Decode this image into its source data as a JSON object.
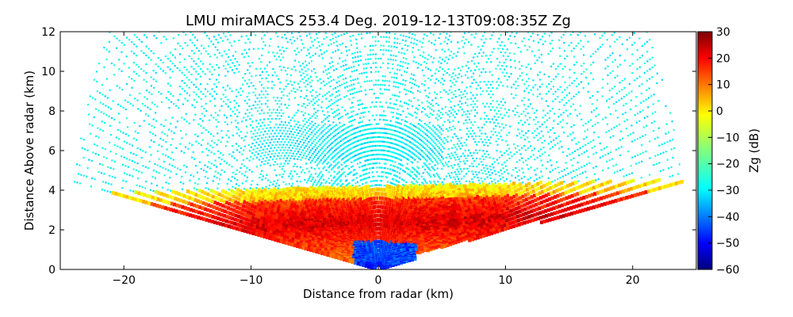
{
  "chart_data": {
    "type": "heatmap",
    "title": "LMU miraMACS 253.4 Deg. 2019-12-13T09:08:35Z  Zg",
    "xlabel": "Distance from radar (km)",
    "ylabel": "Distance Above radar  (km)",
    "xlim": [
      -25,
      25
    ],
    "ylim": [
      0,
      12
    ],
    "x_ticks": [
      -20,
      -10,
      0,
      10,
      20
    ],
    "x_tick_labels": [
      "−20",
      "−10",
      "0",
      "10",
      "20"
    ],
    "y_ticks": [
      0,
      2,
      4,
      6,
      8,
      10,
      12
    ],
    "y_tick_labels": [
      "0",
      "2",
      "4",
      "6",
      "8",
      "10",
      "12"
    ],
    "colorbar": {
      "label": "Zg (dB)",
      "range": [
        -60,
        30
      ],
      "ticks": [
        30,
        20,
        10,
        0,
        -10,
        -20,
        -30,
        -40,
        -50,
        -60
      ],
      "tick_labels": [
        "30",
        "20",
        "10",
        "0",
        "−10",
        "−20",
        "−30",
        "−40",
        "−50",
        "−60"
      ],
      "colormap": "jet"
    },
    "regions": [
      {
        "name": "noise-field",
        "description_value_db": -28,
        "x_range": [
          -23,
          23
        ],
        "y_range": [
          4,
          12
        ]
      },
      {
        "name": "mid-level-cloud",
        "value_db": -30,
        "x_range": [
          -10,
          5
        ],
        "y_range": [
          5.5,
          7.3
        ]
      },
      {
        "name": "precip-layer",
        "value_db": 15,
        "x_range": [
          -24,
          24
        ],
        "y_range": [
          0.5,
          4.2
        ]
      },
      {
        "name": "near-radar-clutter",
        "value_db": -50,
        "x_range": [
          -3,
          3
        ],
        "y_range": [
          0,
          1.2
        ]
      }
    ]
  }
}
